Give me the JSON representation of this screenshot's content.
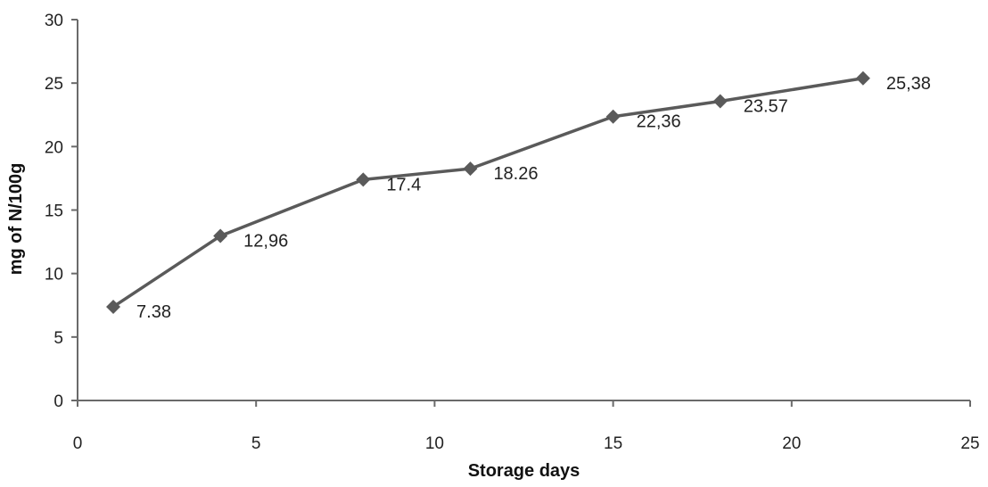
{
  "chart_data": {
    "type": "line",
    "title": "",
    "xlabel": "Storage days",
    "ylabel": "mg of N/100g",
    "xlim": [
      0,
      25
    ],
    "ylim": [
      0,
      30
    ],
    "x_ticks": [
      0,
      5,
      10,
      15,
      20,
      25
    ],
    "y_ticks": [
      0,
      5,
      10,
      15,
      20,
      25,
      30
    ],
    "grid": false,
    "legend": "none",
    "series": [
      {
        "marker": "diamond",
        "color": "#5a5a5a",
        "points": [
          {
            "x": 1,
            "y": 7.38,
            "label": "7.38"
          },
          {
            "x": 4,
            "y": 12.96,
            "label": "12,96"
          },
          {
            "x": 8,
            "y": 17.4,
            "label": "17.4"
          },
          {
            "x": 11,
            "y": 18.26,
            "label": "18.26"
          },
          {
            "x": 15,
            "y": 22.36,
            "label": "22,36"
          },
          {
            "x": 18,
            "y": 23.57,
            "label": "23.57"
          },
          {
            "x": 22,
            "y": 25.38,
            "label": "25,38"
          }
        ]
      }
    ]
  }
}
